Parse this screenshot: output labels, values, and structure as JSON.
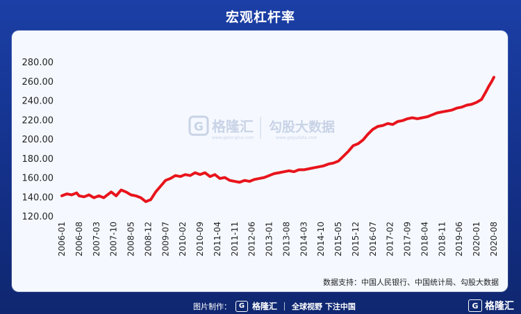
{
  "title": "宏观杠杆率",
  "source": "数据支持：中国人民银行、中国统计局、勾股大数据",
  "watermark": {
    "logo_letter": "G",
    "brand": "格隆汇",
    "brand_sub": "www.gelonghui.com",
    "product": "勾股大数据",
    "product_sub": "www.gogudata.com"
  },
  "footer": {
    "made_by": "图片制作：",
    "brand": "格隆汇",
    "slogan": "全球视野 下注中国",
    "corner_brand": "格隆汇",
    "logo_letter": "G"
  },
  "colors": {
    "line": "#e8141c",
    "background": "#1a3a9e",
    "panel": "#f5f9ff"
  },
  "chart_data": {
    "type": "line",
    "title": "宏观杠杆率",
    "xlabel": "",
    "ylabel": "",
    "ylim": [
      120,
      280
    ],
    "yticks": [
      "120.00",
      "140.00",
      "160.00",
      "180.00",
      "200.00",
      "220.00",
      "240.00",
      "260.00",
      "280.00"
    ],
    "xticks": [
      "2006-01",
      "2006-08",
      "2007-03",
      "2007-10",
      "2008-05",
      "2008-12",
      "2009-07",
      "2010-02",
      "2010-09",
      "2011-04",
      "2011-11",
      "2012-06",
      "2013-01",
      "2013-08",
      "2014-03",
      "2014-10",
      "2015-05",
      "2015-12",
      "2016-07",
      "2017-02",
      "2017-09",
      "2018-04",
      "2018-11",
      "2019-06",
      "2020-01",
      "2020-08"
    ],
    "grid": false,
    "legend": "none",
    "x_start": "2006-01",
    "x_end": "2020-08",
    "series": [
      {
        "name": "",
        "points": [
          [
            "2006-01",
            141
          ],
          [
            "2006-03",
            143
          ],
          [
            "2006-05",
            142
          ],
          [
            "2006-07",
            144
          ],
          [
            "2006-08",
            141
          ],
          [
            "2006-10",
            140
          ],
          [
            "2006-12",
            142
          ],
          [
            "2007-02",
            139
          ],
          [
            "2007-04",
            141
          ],
          [
            "2007-06",
            139
          ],
          [
            "2007-08",
            143
          ],
          [
            "2007-09",
            145
          ],
          [
            "2007-11",
            141
          ],
          [
            "2008-01",
            147
          ],
          [
            "2008-03",
            145
          ],
          [
            "2008-05",
            142
          ],
          [
            "2008-07",
            141
          ],
          [
            "2008-09",
            139
          ],
          [
            "2008-11",
            135
          ],
          [
            "2009-01",
            137
          ],
          [
            "2009-03",
            145
          ],
          [
            "2009-05",
            151
          ],
          [
            "2009-07",
            157
          ],
          [
            "2009-09",
            159
          ],
          [
            "2009-11",
            162
          ],
          [
            "2010-01",
            161
          ],
          [
            "2010-03",
            163
          ],
          [
            "2010-05",
            162
          ],
          [
            "2010-07",
            165
          ],
          [
            "2010-09",
            163
          ],
          [
            "2010-11",
            165
          ],
          [
            "2011-01",
            161
          ],
          [
            "2011-03",
            163
          ],
          [
            "2011-05",
            159
          ],
          [
            "2011-07",
            160
          ],
          [
            "2011-09",
            157
          ],
          [
            "2011-11",
            156
          ],
          [
            "2012-01",
            155
          ],
          [
            "2012-03",
            157
          ],
          [
            "2012-05",
            156
          ],
          [
            "2012-07",
            158
          ],
          [
            "2012-09",
            159
          ],
          [
            "2012-11",
            160
          ],
          [
            "2013-01",
            162
          ],
          [
            "2013-03",
            164
          ],
          [
            "2013-05",
            165
          ],
          [
            "2013-07",
            166
          ],
          [
            "2013-09",
            167
          ],
          [
            "2013-11",
            166
          ],
          [
            "2014-01",
            168
          ],
          [
            "2014-03",
            168
          ],
          [
            "2014-05",
            169
          ],
          [
            "2014-07",
            170
          ],
          [
            "2014-09",
            171
          ],
          [
            "2014-11",
            172
          ],
          [
            "2015-01",
            174
          ],
          [
            "2015-03",
            175
          ],
          [
            "2015-05",
            177
          ],
          [
            "2015-07",
            182
          ],
          [
            "2015-09",
            187
          ],
          [
            "2015-11",
            193
          ],
          [
            "2016-01",
            195
          ],
          [
            "2016-03",
            199
          ],
          [
            "2016-05",
            205
          ],
          [
            "2016-07",
            210
          ],
          [
            "2016-09",
            213
          ],
          [
            "2016-11",
            214
          ],
          [
            "2017-01",
            216
          ],
          [
            "2017-03",
            215
          ],
          [
            "2017-05",
            218
          ],
          [
            "2017-07",
            219
          ],
          [
            "2017-09",
            221
          ],
          [
            "2017-11",
            222
          ],
          [
            "2018-01",
            221
          ],
          [
            "2018-03",
            222
          ],
          [
            "2018-05",
            223
          ],
          [
            "2018-07",
            225
          ],
          [
            "2018-09",
            227
          ],
          [
            "2018-11",
            228
          ],
          [
            "2019-01",
            229
          ],
          [
            "2019-03",
            230
          ],
          [
            "2019-05",
            232
          ],
          [
            "2019-07",
            233
          ],
          [
            "2019-09",
            235
          ],
          [
            "2019-11",
            236
          ],
          [
            "2020-01",
            238
          ],
          [
            "2020-03",
            241
          ],
          [
            "2020-05",
            250
          ],
          [
            "2020-06",
            255
          ],
          [
            "2020-07",
            259
          ],
          [
            "2020-08",
            264
          ]
        ]
      }
    ]
  }
}
